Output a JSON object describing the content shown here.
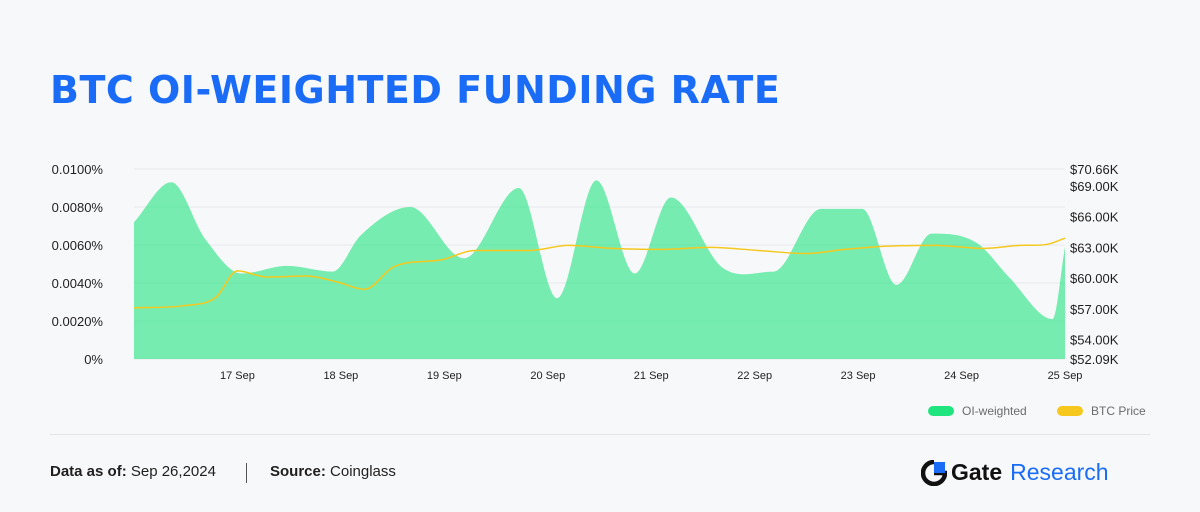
{
  "title": "BTC OI-WEIGHTED FUNDING RATE",
  "chart_data": {
    "type": "area",
    "left_axis": {
      "ticks": [
        "0.0100%",
        "0.0080%",
        "0.0060%",
        "0.0040%",
        "0.0020%",
        "0%"
      ],
      "range": [
        0,
        0.01
      ]
    },
    "right_axis": {
      "ticks": [
        "$70.66K",
        "$69.00K",
        "$66.00K",
        "$63.00K",
        "$60.00K",
        "$57.00K",
        "$54.00K",
        "$52.09K"
      ],
      "range": [
        52.09,
        70.66
      ]
    },
    "x_range": [
      16.0,
      25.0
    ],
    "x_ticks": [
      {
        "label": "17 Sep",
        "x": 17
      },
      {
        "label": "18 Sep",
        "x": 18
      },
      {
        "label": "19 Sep",
        "x": 19
      },
      {
        "label": "20 Sep",
        "x": 20
      },
      {
        "label": "21 Sep",
        "x": 21
      },
      {
        "label": "22 Sep",
        "x": 22
      },
      {
        "label": "23 Sep",
        "x": 23
      },
      {
        "label": "24 Sep",
        "x": 24
      },
      {
        "label": "25 Sep",
        "x": 25
      }
    ],
    "series": [
      {
        "name": "OI-weighted",
        "color": "#20e57f",
        "x": [
          16.0,
          16.36,
          16.69,
          17.04,
          17.48,
          17.92,
          18.19,
          18.67,
          19.19,
          19.72,
          20.09,
          20.47,
          20.84,
          21.19,
          21.69,
          22.18,
          22.64,
          23.04,
          23.37,
          23.71,
          24.15,
          24.46,
          24.88,
          25.0
        ],
        "y": [
          0.0072,
          0.0093,
          0.0063,
          0.0045,
          0.0049,
          0.0046,
          0.0065,
          0.008,
          0.0053,
          0.009,
          0.0032,
          0.0094,
          0.0045,
          0.0085,
          0.0048,
          0.0046,
          0.0079,
          0.0079,
          0.0039,
          0.0066,
          0.0061,
          0.0043,
          0.0021,
          0.0059
        ]
      },
      {
        "name": "BTC Price",
        "color": "#f6c81e",
        "x": [
          16.0,
          16.48,
          16.79,
          17.0,
          17.29,
          17.67,
          17.97,
          18.23,
          18.51,
          18.98,
          19.3,
          19.83,
          20.2,
          20.63,
          21.09,
          21.57,
          22.03,
          22.49,
          22.87,
          23.24,
          23.75,
          24.21,
          24.56,
          24.83,
          25.0
        ],
        "y": [
          57.1,
          57.3,
          58.1,
          60.7,
          60.1,
          60.2,
          59.6,
          58.9,
          61.1,
          61.8,
          62.7,
          62.7,
          63.2,
          62.9,
          62.8,
          63.0,
          62.7,
          62.4,
          62.8,
          63.1,
          63.2,
          62.9,
          63.2,
          63.3,
          63.9
        ]
      }
    ],
    "grid": true,
    "legend_position": "bottom-right"
  },
  "footer": {
    "date_label": "Data as of:",
    "date_value": "Sep 26,2024",
    "source_label": "Source:",
    "source_value": "Coinglass"
  },
  "brand": {
    "name_bold": "Gate",
    "name_light": "Research"
  }
}
